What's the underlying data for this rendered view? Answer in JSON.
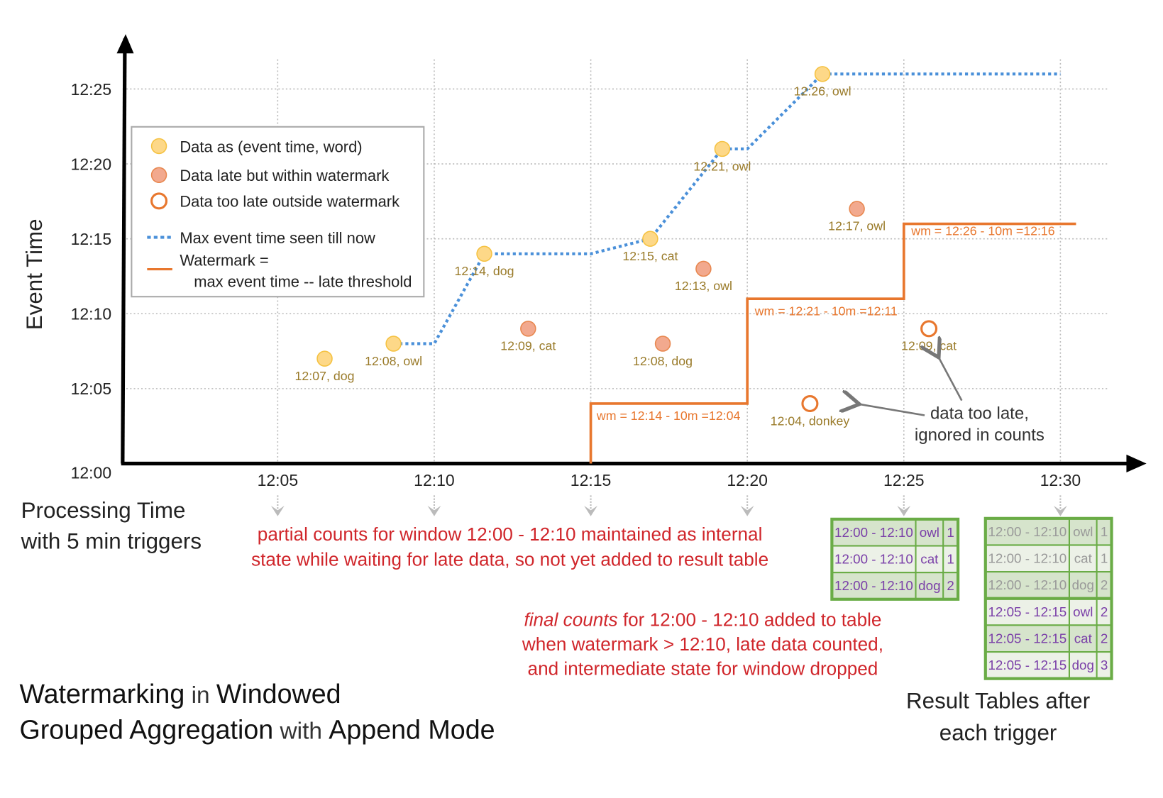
{
  "chart_data": {
    "type": "scatter",
    "ylabel": "Event Time",
    "xlabel_lines": [
      "Processing Time",
      "with 5 min triggers"
    ],
    "x_ticks": [
      "12:05",
      "12:10",
      "12:15",
      "12:20",
      "12:25",
      "12:30"
    ],
    "y_ticks": [
      "12:00",
      "12:05",
      "12:10",
      "12:15",
      "12:20",
      "12:25"
    ],
    "grid": true,
    "points": [
      {
        "proc": 6.5,
        "event": 7,
        "label": "12:07, dog",
        "kind": "on-time"
      },
      {
        "proc": 8.7,
        "event": 8,
        "label": "12:08, owl",
        "kind": "on-time"
      },
      {
        "proc": 11.6,
        "event": 14,
        "label": "12:14, dog",
        "kind": "on-time"
      },
      {
        "proc": 13.0,
        "event": 9,
        "label": "12:09, cat",
        "kind": "late"
      },
      {
        "proc": 16.9,
        "event": 15,
        "label": "12:15, cat",
        "kind": "on-time"
      },
      {
        "proc": 17.3,
        "event": 8,
        "label": "12:08, dog",
        "kind": "late"
      },
      {
        "proc": 18.6,
        "event": 13,
        "label": "12:13, owl",
        "kind": "late"
      },
      {
        "proc": 19.2,
        "event": 21,
        "label": "12:21, owl",
        "kind": "on-time"
      },
      {
        "proc": 22.0,
        "event": 4,
        "label": "12:04, donkey",
        "kind": "too-late"
      },
      {
        "proc": 22.4,
        "event": 26,
        "label": "12:26, owl",
        "kind": "on-time"
      },
      {
        "proc": 23.5,
        "event": 17,
        "label": "12:17, owl",
        "kind": "late"
      },
      {
        "proc": 25.8,
        "event": 9,
        "label": "12:09, cat",
        "kind": "too-late"
      }
    ],
    "max_event_time_line": [
      [
        8.7,
        8
      ],
      [
        10,
        8
      ],
      [
        11.6,
        14
      ],
      [
        15,
        14
      ],
      [
        16.9,
        15
      ],
      [
        19.2,
        21
      ],
      [
        20,
        21
      ],
      [
        22.4,
        26
      ],
      [
        30,
        26
      ]
    ],
    "watermark_line": [
      [
        15,
        0
      ],
      [
        15,
        4
      ],
      [
        20,
        4
      ],
      [
        20,
        11
      ],
      [
        25,
        11
      ],
      [
        25,
        16
      ],
      [
        30.5,
        16
      ]
    ],
    "watermark_labels": [
      "wm = 12:14 - 10m =12:04",
      "wm = 12:21 - 10m =12:11",
      "wm = 12:26 - 10m =12:16"
    ],
    "legend": {
      "placement": "top-left",
      "items": [
        "Data as (event time, word)",
        "Data late but within watermark",
        "Data too late outside watermark",
        "Max event time seen till now",
        "Watermark =",
        "max event time -- late threshold"
      ]
    },
    "colors": {
      "on_time": "#fdd888",
      "on_time_stroke": "#f5c242",
      "late": "#f2a98e",
      "late_stroke": "#e8874f",
      "too_late": "#e8772e",
      "max_line": "#4a90d9",
      "watermark": "#e8772e"
    }
  },
  "annotations": {
    "partial_counts": [
      "partial counts for window 12:00 - 12:10 maintained as internal",
      "state while waiting for late data, so not yet added  to result table"
    ],
    "final_counts_em": "final counts",
    "final_counts": [
      " for 12:00 - 12:10 added to table",
      "when watermark > 12:10, late data counted,",
      "and intermediate state for window dropped"
    ],
    "too_late": [
      "data too late,",
      "ignored in counts"
    ]
  },
  "title": {
    "parts1": [
      [
        "Watermarking",
        true
      ],
      [
        " in ",
        false
      ],
      [
        "Windowed",
        true
      ]
    ],
    "parts2": [
      [
        "Grouped Aggregation",
        true
      ],
      [
        " with ",
        false
      ],
      [
        "Append Mode",
        true
      ]
    ]
  },
  "result_tables": {
    "caption": [
      "Result Tables after",
      "each trigger"
    ],
    "colors": {
      "border": "#6aac46",
      "row_dark": "#d6e4cc",
      "row_light": "#ecf1e7",
      "new_text": "#7a3fa8",
      "old_text": "#999999"
    },
    "tables": [
      {
        "trigger": "12:25",
        "rows": [
          {
            "window": "12:00 - 12:10",
            "word": "owl",
            "count": "1",
            "new": true
          },
          {
            "window": "12:00 - 12:10",
            "word": "cat",
            "count": "1",
            "new": true
          },
          {
            "window": "12:00 - 12:10",
            "word": "dog",
            "count": "2",
            "new": true
          }
        ]
      },
      {
        "trigger": "12:30",
        "rows": [
          {
            "window": "12:00 - 12:10",
            "word": "owl",
            "count": "1",
            "new": false
          },
          {
            "window": "12:00 - 12:10",
            "word": "cat",
            "count": "1",
            "new": false
          },
          {
            "window": "12:00 - 12:10",
            "word": "dog",
            "count": "2",
            "new": false
          },
          {
            "window": "12:05 - 12:15",
            "word": "owl",
            "count": "2",
            "new": true
          },
          {
            "window": "12:05 - 12:15",
            "word": "cat",
            "count": "2",
            "new": true
          },
          {
            "window": "12:05 - 12:15",
            "word": "dog",
            "count": "3",
            "new": true
          }
        ]
      }
    ]
  }
}
